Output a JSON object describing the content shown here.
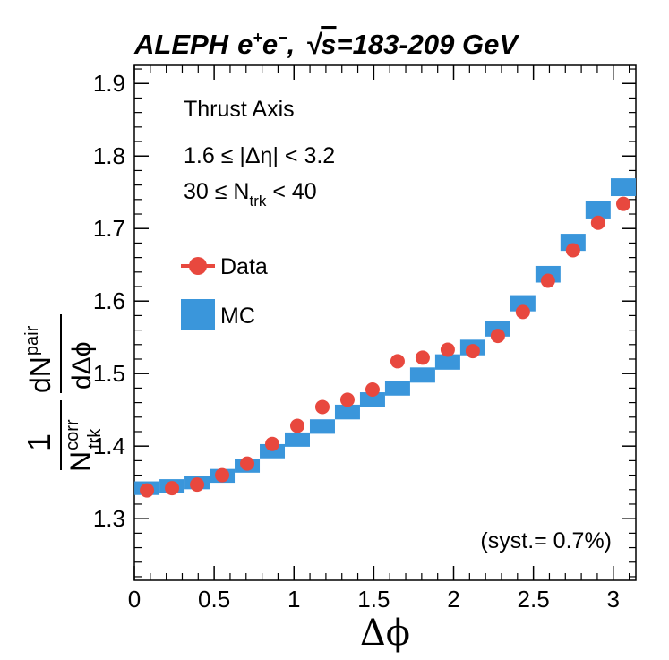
{
  "title": {
    "experiment": "ALEPH",
    "beam_e": "e",
    "beam_plus": "+",
    "beam_minus": "−",
    "comma": ",",
    "sqrt": "√",
    "s": "s",
    "energy": "=183-209 GeV"
  },
  "annotations": {
    "axis": "Thrust Axis",
    "eta_cut": "1.6 ≤ |Δη| < 3.2",
    "ntrk_lo": "30 ≤ N",
    "ntrk_sub": "trk",
    "ntrk_hi": " < 40",
    "syst": "(syst.= 0.7%)"
  },
  "legend": {
    "data_label": "Data",
    "mc_label": "MC"
  },
  "axes": {
    "xlabel": "Δϕ",
    "ylabel": {
      "one": "1",
      "N": "N",
      "sup": "corr",
      "sub": "trk",
      "dN": "dN",
      "dN_sup": "pair",
      "dphi": "dΔϕ"
    }
  },
  "colors": {
    "data": "#e8483e",
    "mc": "#3a96db",
    "axis": "#000000"
  },
  "chart_data": {
    "type": "scatter",
    "title": "ALEPH e+e−, √s=183-209 GeV",
    "xlabel": "Δϕ",
    "ylabel": "1/N_trk^corr dN^pair/dΔϕ",
    "xlim": [
      0,
      3.1416
    ],
    "ylim": [
      1.215,
      1.925
    ],
    "x_ticks": [
      0,
      0.5,
      1,
      1.5,
      2,
      2.5,
      3
    ],
    "x_tick_labels": [
      "0",
      "0.5",
      "1",
      "1.5",
      "2",
      "2.5",
      "3"
    ],
    "y_ticks": [
      1.3,
      1.4,
      1.5,
      1.6,
      1.7,
      1.8,
      1.9
    ],
    "y_tick_labels": [
      "1.3",
      "1.4",
      "1.5",
      "1.6",
      "1.7",
      "1.8",
      "1.9"
    ],
    "grid": false,
    "legend_position": "left-middle",
    "series": [
      {
        "name": "Data",
        "style": "markers",
        "x": [
          0.079,
          0.236,
          0.393,
          0.55,
          0.707,
          0.864,
          1.021,
          1.178,
          1.335,
          1.492,
          1.649,
          1.806,
          1.963,
          2.12,
          2.277,
          2.434,
          2.591,
          2.748,
          2.905,
          3.063
        ],
        "y": [
          1.339,
          1.342,
          1.347,
          1.36,
          1.376,
          1.403,
          1.428,
          1.454,
          1.464,
          1.478,
          1.517,
          1.522,
          1.533,
          1.531,
          1.552,
          1.585,
          1.628,
          1.67,
          1.708,
          1.734
        ]
      },
      {
        "name": "MC",
        "style": "boxes",
        "x": [
          0.079,
          0.236,
          0.393,
          0.55,
          0.707,
          0.864,
          1.021,
          1.178,
          1.335,
          1.492,
          1.649,
          1.806,
          1.963,
          2.12,
          2.277,
          2.434,
          2.591,
          2.748,
          2.905,
          3.063
        ],
        "y": [
          1.342,
          1.345,
          1.35,
          1.359,
          1.373,
          1.393,
          1.409,
          1.427,
          1.447,
          1.464,
          1.48,
          1.498,
          1.516,
          1.536,
          1.562,
          1.597,
          1.637,
          1.681,
          1.726,
          1.757
        ],
        "syst_frac": 0.007
      }
    ]
  }
}
